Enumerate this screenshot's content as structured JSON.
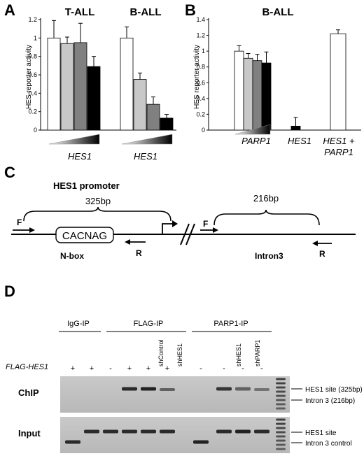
{
  "panels": {
    "a": "A",
    "b": "B",
    "c": "C",
    "d": "D"
  },
  "chart_data": [
    {
      "type": "bar",
      "panel": "A",
      "ylabel": "HES reporter activity",
      "ylim": [
        0,
        1.2
      ],
      "yticks": [
        "0",
        "0.2",
        "0.4",
        "0.6",
        "0.8",
        "1",
        "1.2"
      ],
      "groups": [
        {
          "title": "T-ALL",
          "xlabel": "HES1",
          "values": [
            1.0,
            0.94,
            0.95,
            0.69
          ],
          "errors": [
            0.19,
            0.07,
            0.21,
            0.11
          ]
        },
        {
          "title": "B-ALL",
          "xlabel": "HES1",
          "values": [
            1.0,
            0.55,
            0.28,
            0.13
          ],
          "errors": [
            0.12,
            0.07,
            0.08,
            0.04
          ]
        }
      ],
      "bar_colors": [
        "#ffffff",
        "#c8c8c8",
        "#808080",
        "#000000"
      ]
    },
    {
      "type": "bar",
      "panel": "B",
      "title": "B-ALL",
      "ylabel": "HES reporter activity",
      "ylim": [
        0,
        1.4
      ],
      "yticks": [
        "0",
        "0.2",
        "0.4",
        "0.6",
        "0.8",
        "1",
        "1.2",
        "1.4"
      ],
      "groups": [
        {
          "xlabel": "PARP1",
          "values": [
            0.0,
            1.0,
            0.91,
            0.88,
            0.85
          ],
          "errors": [
            0,
            0.07,
            0.06,
            0.08,
            0.14
          ]
        },
        {
          "xlabel": "HES1",
          "values": [
            0.0,
            0.05,
            0.0
          ],
          "errors": [
            0,
            0.11,
            0
          ]
        },
        {
          "xlabel": "HES1 +",
          "xlabel2": "PARP1",
          "values": [
            1.22
          ],
          "errors": [
            0.05
          ]
        }
      ]
    }
  ],
  "diagram": {
    "title": "HES1 promoter",
    "left_size": "325bp",
    "right_size": "216bp",
    "box_text": "CACNAG",
    "forward": "F",
    "reverse": "R",
    "left_label": "N-box",
    "right_label": "Intron3"
  },
  "gel": {
    "groups": [
      "IgG-IP",
      "FLAG-IP",
      "PARP1-IP"
    ],
    "lane_labels": [
      "shControl",
      "shHES1",
      "shHES1",
      "shPARP1"
    ],
    "flag_label": "FLAG-HES1",
    "flag_signs": [
      "+",
      "+",
      "-",
      "+",
      "+",
      "+",
      "-",
      "-",
      "-",
      "-"
    ],
    "rows": [
      "ChIP",
      "Input"
    ],
    "right_labels": [
      "HES1 site (325bp)",
      "Intron 3 (216bp)",
      "HES1 site",
      "Intron 3 control"
    ]
  }
}
